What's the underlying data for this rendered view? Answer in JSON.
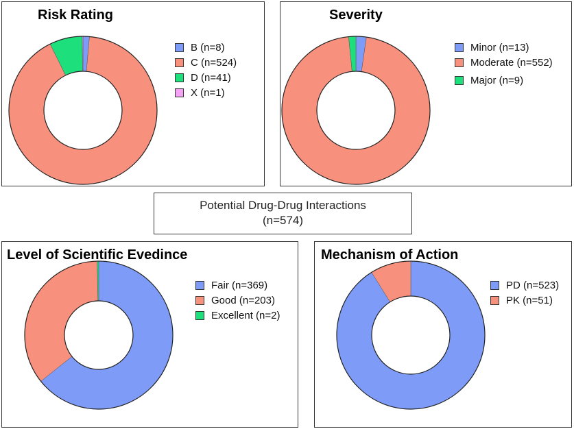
{
  "header": {
    "line1": "Potential Drug-Drug Interactions",
    "line2": "(n=574)"
  },
  "chart_data": [
    {
      "type": "pie",
      "title": "Risk Rating",
      "categories": [
        "B (n=8)",
        "C (n=524)",
        "D (n=41)",
        "X (n=1)"
      ],
      "values": [
        8,
        524,
        41,
        1
      ],
      "colors": [
        "#7e9cf7",
        "#f8907e",
        "#1ddf7b",
        "#f2a3f2"
      ],
      "legend": "right"
    },
    {
      "type": "pie",
      "title": "Severity",
      "categories": [
        "Minor (n=13)",
        "Moderate (n=552)",
        "Major (n=9)"
      ],
      "values": [
        13,
        552,
        9
      ],
      "colors": [
        "#7e9cf7",
        "#f8907e",
        "#1ddf7b"
      ],
      "legend": "right"
    },
    {
      "type": "pie",
      "title": "Level of Scientific Evedince",
      "categories": [
        "Fair (n=369)",
        "Good (n=203)",
        "Excellent (n=2)"
      ],
      "values": [
        369,
        203,
        2
      ],
      "colors": [
        "#7e9cf7",
        "#f8907e",
        "#1ddf7b"
      ],
      "legend": "right"
    },
    {
      "type": "pie",
      "title": "Mechanism of Action",
      "categories": [
        "PD (n=523)",
        "PK (n=51)"
      ],
      "values": [
        523,
        51
      ],
      "colors": [
        "#7e9cf7",
        "#f8907e"
      ],
      "legend": "right"
    }
  ]
}
